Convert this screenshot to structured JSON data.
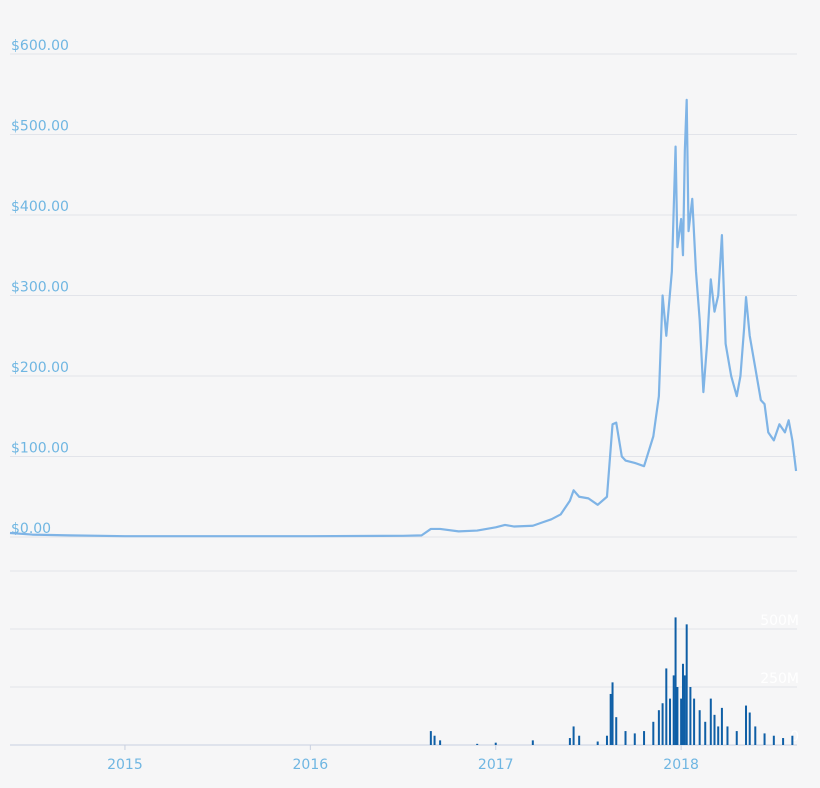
{
  "chart_data": {
    "type": "line",
    "xlim": [
      2014.38,
      2018.625
    ],
    "xticks": [
      2015,
      2016,
      2017,
      2018
    ],
    "ylim": [
      0,
      600
    ],
    "yticks": [
      {
        "value": 0,
        "label": "$0.00"
      },
      {
        "value": 100,
        "label": "$100.00"
      },
      {
        "value": 200,
        "label": "$200.00"
      },
      {
        "value": 300,
        "label": "$300.00"
      },
      {
        "value": 400,
        "label": "$400.00"
      },
      {
        "value": 500,
        "label": "$500.00"
      },
      {
        "value": 600,
        "label": "$600.00"
      }
    ],
    "y2lim": [
      0,
      750000000
    ],
    "y2ticks": [
      0,
      {
        "value": 250000000,
        "label": "250M"
      },
      {
        "value": 500000000,
        "label": "500M"
      }
    ],
    "grid": true,
    "series": [
      {
        "type": "line",
        "color": "#7fb4e6",
        "x": [
          2014.38,
          2014.5,
          2014.7,
          2015,
          2015.5,
          2016,
          2016.5,
          2016.6,
          2016.65,
          2016.7,
          2016.8,
          2016.9,
          2017,
          2017.05,
          2017.1,
          2017.2,
          2017.25,
          2017.3,
          2017.35,
          2017.4,
          2017.42,
          2017.45,
          2017.5,
          2017.55,
          2017.6,
          2017.63,
          2017.65,
          2017.68,
          2017.7,
          2017.75,
          2017.8,
          2017.85,
          2017.88,
          2017.9,
          2017.92,
          2017.95,
          2017.97,
          2017.98,
          2018.0,
          2018.01,
          2018.02,
          2018.03,
          2018.04,
          2018.06,
          2018.08,
          2018.1,
          2018.12,
          2018.14,
          2018.16,
          2018.18,
          2018.2,
          2018.22,
          2018.24,
          2018.27,
          2018.3,
          2018.32,
          2018.34,
          2018.35,
          2018.37,
          2018.4,
          2018.43,
          2018.45,
          2018.47,
          2018.5,
          2018.53,
          2018.56,
          2018.58,
          2018.6,
          2018.62
        ],
        "values": [
          5,
          3,
          2,
          1,
          1,
          1,
          1.5,
          2,
          10,
          10,
          7,
          8,
          12,
          15,
          13,
          14,
          18,
          22,
          28,
          45,
          58,
          50,
          48,
          40,
          50,
          140,
          142,
          100,
          95,
          92,
          88,
          125,
          175,
          300,
          250,
          330,
          485,
          360,
          395,
          350,
          480,
          543,
          380,
          420,
          330,
          270,
          180,
          240,
          320,
          280,
          300,
          375,
          240,
          200,
          175,
          200,
          260,
          298,
          250,
          210,
          170,
          165,
          130,
          120,
          140,
          130,
          145,
          120,
          82
        ]
      },
      {
        "type": "bar",
        "axis": "y2",
        "color": "#0f5fa6",
        "x": [
          2016.65,
          2016.67,
          2016.7,
          2016.9,
          2017.0,
          2017.2,
          2017.4,
          2017.42,
          2017.45,
          2017.55,
          2017.6,
          2017.62,
          2017.63,
          2017.65,
          2017.7,
          2017.75,
          2017.8,
          2017.85,
          2017.88,
          2017.9,
          2017.92,
          2017.94,
          2017.96,
          2017.97,
          2017.98,
          2018.0,
          2018.01,
          2018.02,
          2018.03,
          2018.05,
          2018.07,
          2018.1,
          2018.13,
          2018.16,
          2018.18,
          2018.2,
          2018.22,
          2018.25,
          2018.3,
          2018.35,
          2018.37,
          2018.4,
          2018.45,
          2018.5,
          2018.55,
          2018.6
        ],
        "values": [
          60000000,
          40000000,
          20000000,
          5000000,
          10000000,
          20000000,
          30000000,
          80000000,
          40000000,
          15000000,
          40000000,
          220000000,
          270000000,
          120000000,
          60000000,
          50000000,
          60000000,
          100000000,
          150000000,
          180000000,
          330000000,
          200000000,
          300000000,
          550000000,
          250000000,
          200000000,
          350000000,
          300000000,
          520000000,
          250000000,
          200000000,
          150000000,
          100000000,
          200000000,
          130000000,
          80000000,
          160000000,
          80000000,
          60000000,
          170000000,
          140000000,
          80000000,
          50000000,
          40000000,
          30000000,
          40000000
        ]
      }
    ]
  }
}
